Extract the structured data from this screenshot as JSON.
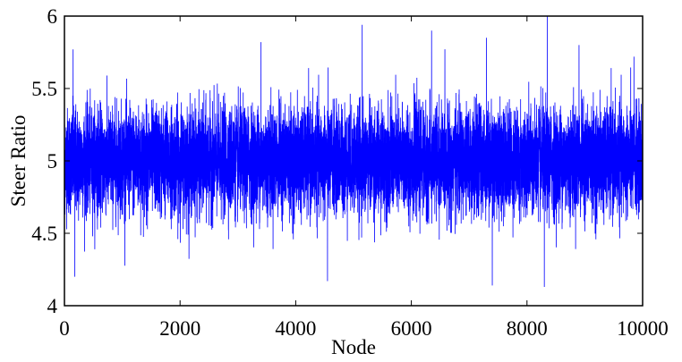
{
  "chart_data": {
    "type": "line",
    "title": "",
    "xlabel": "Node",
    "ylabel": "Steer Ratio",
    "xlim": [
      0,
      10000
    ],
    "ylim": [
      4,
      6
    ],
    "x_ticks": [
      0,
      2000,
      4000,
      6000,
      8000,
      10000
    ],
    "y_ticks": [
      4,
      4.5,
      5,
      5.5,
      6
    ],
    "x_tick_labels": [
      "0",
      "2000",
      "4000",
      "6000",
      "8000",
      "10000"
    ],
    "y_tick_labels": [
      "4",
      "4.5",
      "5",
      "5.5",
      "6"
    ],
    "grid": false,
    "line_color": "#0000ff",
    "series": [
      {
        "mean": 5.0,
        "std": 0.18,
        "n_points": 10001,
        "x_start": 0,
        "x_end": 10000,
        "observed_min": 4.13,
        "observed_max": 6.0,
        "notable_points": [
          {
            "x": 150,
            "y": 5.77
          },
          {
            "x": 180,
            "y": 4.2
          },
          {
            "x": 3400,
            "y": 5.82
          },
          {
            "x": 4550,
            "y": 4.17
          },
          {
            "x": 5150,
            "y": 5.94
          },
          {
            "x": 6350,
            "y": 5.9
          },
          {
            "x": 7300,
            "y": 5.85
          },
          {
            "x": 7400,
            "y": 4.14
          },
          {
            "x": 8300,
            "y": 4.13
          },
          {
            "x": 8350,
            "y": 6.0
          },
          {
            "x": 8900,
            "y": 5.8
          },
          {
            "x": 9850,
            "y": 5.72
          }
        ]
      }
    ]
  }
}
